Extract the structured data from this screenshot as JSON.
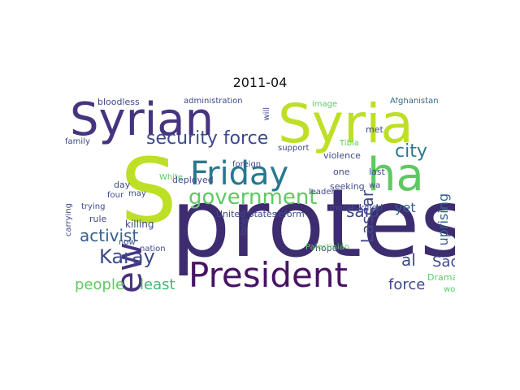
{
  "figure": {
    "title": "2011-04"
  },
  "palette": {
    "indigo": "#463480",
    "deep_purple": "#3e2c70",
    "dark_purple": "#471365",
    "blue": "#35608d",
    "steel_blue": "#31688e",
    "teal": "#21918c",
    "sea_green": "#22a785",
    "green": "#3bbb75",
    "light_green": "#5ec962",
    "lime": "#addc30",
    "yellow_green": "#bddf26",
    "pale_yellow": "#d8e219"
  },
  "cloud": {
    "words": [
      {
        "text": "protest",
        "color": "#3e2c70"
      },
      {
        "text": "Syria",
        "color": "#bddf26"
      },
      {
        "text": "Syrian",
        "color": "#463480"
      },
      {
        "text": "S",
        "color": "#bddf26"
      },
      {
        "text": "Friday",
        "color": "#2a788e"
      },
      {
        "text": "President",
        "color": "#471365"
      },
      {
        "text": "ha",
        "color": "#5ec962"
      },
      {
        "text": "new",
        "color": "#463480"
      },
      {
        "text": "government",
        "color": "#5ec962"
      },
      {
        "text": "security force",
        "color": "#3e4a89"
      },
      {
        "text": "Karay",
        "color": "#3e4a89"
      },
      {
        "text": "activist",
        "color": "#35608d"
      },
      {
        "text": "people",
        "color": "#5ec962"
      },
      {
        "text": "least",
        "color": "#3bbb75"
      },
      {
        "text": "Lascar",
        "color": "#3e4a89"
      },
      {
        "text": "city",
        "color": "#2a788e"
      },
      {
        "text": "uprising",
        "color": "#35608d"
      },
      {
        "text": "said",
        "color": "#414487"
      },
      {
        "text": "al",
        "color": "#3e4a89"
      },
      {
        "text": "Sad",
        "color": "#3e4a89"
      },
      {
        "text": "force",
        "color": "#3e4a89"
      },
      {
        "text": "yet",
        "color": "#35608d"
      },
      {
        "text": "Afghanistan",
        "color": "#31688e"
      },
      {
        "text": "administration",
        "color": "#3e4a89"
      },
      {
        "text": "bloodless",
        "color": "#3e4a89"
      },
      {
        "text": "family",
        "color": "#3e4a89"
      },
      {
        "text": "killing",
        "color": "#3e4a89"
      },
      {
        "text": "rule",
        "color": "#3e4a89"
      },
      {
        "text": "day",
        "color": "#3e4a89"
      },
      {
        "text": "deployed",
        "color": "#3e4a89"
      },
      {
        "text": "United States",
        "color": "#3e4a89"
      },
      {
        "text": "reform",
        "color": "#3e4a89"
      },
      {
        "text": "support",
        "color": "#3e4a89"
      },
      {
        "text": "violence",
        "color": "#3e4a89"
      },
      {
        "text": "foreign",
        "color": "#3e4a89"
      },
      {
        "text": "image",
        "color": "#5ec962"
      },
      {
        "text": "Tibia",
        "color": "#5ec962"
      },
      {
        "text": "met",
        "color": "#3e4a89"
      },
      {
        "text": "last",
        "color": "#3e4a89"
      },
      {
        "text": "month",
        "color": "#3e4a89"
      },
      {
        "text": "seeking",
        "color": "#3e4a89"
      },
      {
        "text": "killed",
        "color": "#3e4a89"
      },
      {
        "text": "hope",
        "color": "#3e4a89"
      },
      {
        "text": "leader",
        "color": "#3e4a89"
      },
      {
        "text": "one",
        "color": "#3e4a89"
      },
      {
        "text": "Drama",
        "color": "#5ec962"
      },
      {
        "text": "work",
        "color": "#5ec962"
      },
      {
        "text": "wa",
        "color": "#3e4a89"
      },
      {
        "text": "now",
        "color": "#3e4a89"
      },
      {
        "text": "nation",
        "color": "#3e4a89"
      },
      {
        "text": "four",
        "color": "#3e4a89"
      },
      {
        "text": "may",
        "color": "#3e4a89"
      },
      {
        "text": "White",
        "color": "#5ec962"
      },
      {
        "text": "trying",
        "color": "#3e4a89"
      },
      {
        "text": "carrying",
        "color": "#3e4a89"
      },
      {
        "text": "long",
        "color": "#3e4a89"
      },
      {
        "text": "will",
        "color": "#3e4a89"
      },
      {
        "text": "Palestinian",
        "color": "#5ec962"
      }
    ]
  }
}
